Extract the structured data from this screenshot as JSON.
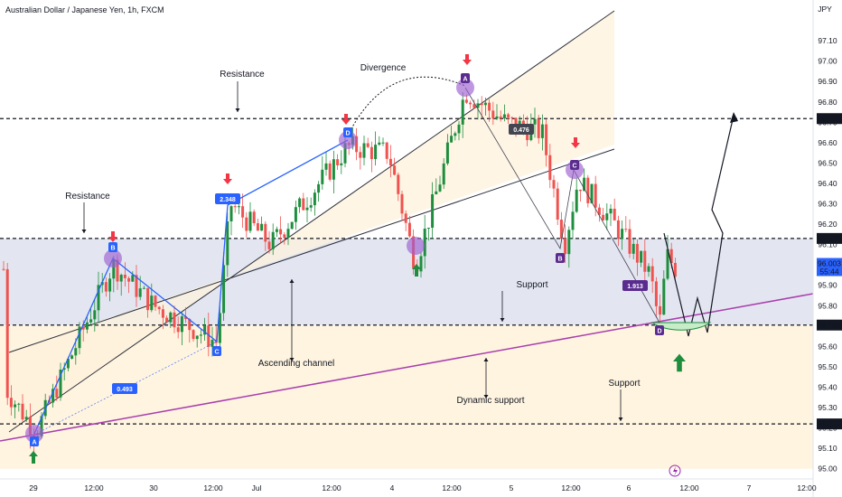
{
  "header": {
    "symbol_title": "Australian Dollar / Japanese Yen, 1h, FXCM"
  },
  "currency": "JPY",
  "colors": {
    "up": "#26a69a",
    "upBody": "#1e8e3e",
    "down": "#ef5350",
    "channel": "#fdf1dc",
    "band": "#e3e6f0",
    "lowerZone": "#fff4e0",
    "purple": "#a93fae",
    "blue": "#2962ff",
    "pivot": "#9c5fd1"
  },
  "chart_data": {
    "type": "candlestick",
    "title": "Australian Dollar / Japanese Yen, 1h, FXCM",
    "ylim": [
      94.95,
      97.3
    ],
    "y_ticks": [
      "97.10",
      "97.00",
      "96.90",
      "96.80",
      "96.70",
      "96.60",
      "96.50",
      "96.40",
      "96.30",
      "96.20",
      "96.10",
      "96.00",
      "95.90",
      "95.80",
      "95.70",
      "95.60",
      "95.50",
      "95.40",
      "95.30",
      "95.20",
      "95.10",
      "95.00"
    ],
    "x_ticks": [
      "29",
      "12:00",
      "30",
      "12:00",
      "Jul",
      "12:00",
      "4",
      "12:00",
      "5",
      "12:00",
      "6",
      "12:00",
      "7",
      "12:00"
    ],
    "levels": [
      {
        "value": 96.718,
        "label": "96.718"
      },
      {
        "value": 96.13,
        "label": "96.130"
      },
      {
        "value": 95.705,
        "label": "95.705"
      },
      {
        "value": 95.22,
        "label": "95.220"
      }
    ],
    "last_price": {
      "value": 96.003,
      "label": "96.003",
      "timer": "55:44"
    },
    "ratios": [
      "0.493",
      "2.348",
      "0.476",
      "1.913"
    ],
    "pivots": [
      "A",
      "B",
      "C",
      "D",
      "A",
      "B",
      "C",
      "D"
    ],
    "annotations": [
      "Resistance",
      "Resistance",
      "Divergence",
      "Support",
      "Support",
      "Ascending channel",
      "Dynamic support"
    ],
    "series_up_down_sequence": "mixed hourly candles rising from ~95.15 to ~96.85 then falling to ~95.68 and rebounding to ~96.00"
  }
}
